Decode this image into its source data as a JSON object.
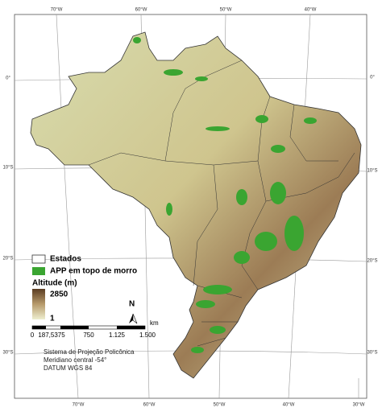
{
  "graticule": {
    "top": [
      "70°W",
      "60°W",
      "50°W",
      "40°W"
    ],
    "bottom": [
      "70°W",
      "60°W",
      "50°W",
      "40°W",
      "30°W"
    ],
    "left": [
      "0°",
      "10°S",
      "20°S",
      "30°S"
    ],
    "right": [
      "0°",
      "10°S",
      "20°S",
      "30°S"
    ]
  },
  "legend": {
    "items": [
      "Estados",
      "APP em topo de morro"
    ],
    "altitude_title": "Altitude (m)",
    "altitude_max": "2850",
    "altitude_min": "1"
  },
  "north": "N",
  "scale": {
    "labels": [
      "0",
      "187,5375",
      "750",
      "1.125",
      "1.500"
    ],
    "unit": "km"
  },
  "projection": [
    "Sistema de Projeção Policônica",
    "Meridiano central -54°",
    "DATUM WGS 84"
  ]
}
